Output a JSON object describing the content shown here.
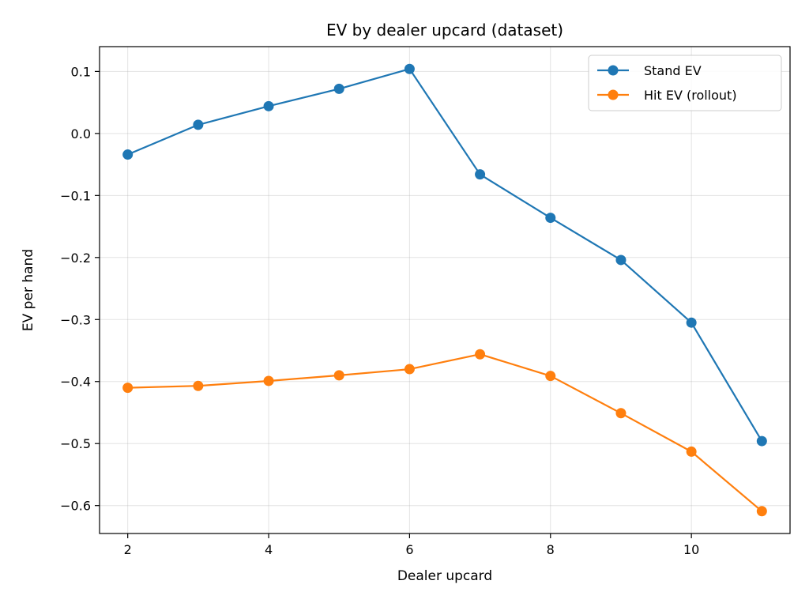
{
  "chart_data": {
    "type": "line",
    "title": "EV by dealer upcard (dataset)",
    "xlabel": "Dealer upcard",
    "ylabel": "EV per hand",
    "x": [
      2,
      3,
      4,
      5,
      6,
      7,
      8,
      9,
      10,
      11
    ],
    "xticks": [
      2,
      4,
      6,
      8,
      10
    ],
    "yticks": [
      0.1,
      0.0,
      -0.1,
      -0.2,
      -0.3,
      -0.4,
      -0.5,
      -0.6
    ],
    "xlim": [
      1.6,
      11.4
    ],
    "ylim": [
      -0.645,
      0.14
    ],
    "grid": true,
    "legend_position": "top-right",
    "series": [
      {
        "name": "Stand EV",
        "color": "#1f77b4",
        "values": [
          -0.034,
          0.014,
          0.044,
          0.072,
          0.104,
          -0.066,
          -0.136,
          -0.204,
          -0.305,
          -0.496
        ]
      },
      {
        "name": "Hit EV (rollout)",
        "color": "#ff7f0e",
        "values": [
          -0.41,
          -0.407,
          -0.399,
          -0.39,
          -0.38,
          -0.356,
          -0.391,
          -0.451,
          -0.513,
          -0.609
        ]
      }
    ]
  }
}
